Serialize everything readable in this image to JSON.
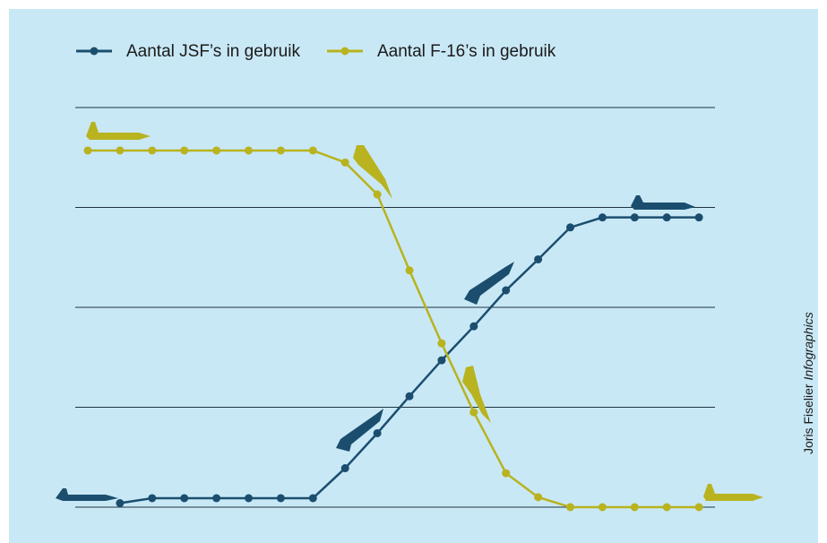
{
  "chart_data": {
    "type": "line",
    "categories": [
      null,
      null,
      null,
      null,
      null,
      null,
      null,
      null,
      null,
      null,
      null,
      null,
      null,
      null,
      null,
      null,
      null,
      null,
      null,
      null
    ],
    "series": [
      {
        "name": "Aantal JSF’s in gebruik",
        "color": "#1b4e6e",
        "values": [
          null,
          0.04,
          0.09,
          0.09,
          0.09,
          0.09,
          0.09,
          0.09,
          0.39,
          0.74,
          1.11,
          1.47,
          1.81,
          2.17,
          2.48,
          2.8,
          2.9,
          2.9,
          2.9,
          2.9
        ]
      },
      {
        "name": "Aantal F-16’s in gebruik",
        "color": "#b8b31f",
        "values": [
          3.57,
          3.57,
          3.57,
          3.57,
          3.57,
          3.57,
          3.57,
          3.57,
          3.45,
          3.13,
          2.37,
          1.64,
          0.95,
          0.34,
          0.1,
          0,
          0,
          0,
          0,
          0
        ]
      }
    ],
    "ylim": [
      0,
      4
    ],
    "gridlines": [
      0,
      1,
      2,
      3,
      4
    ],
    "credit": {
      "name": "Joris Fiselier",
      "role": "Infographics"
    }
  }
}
